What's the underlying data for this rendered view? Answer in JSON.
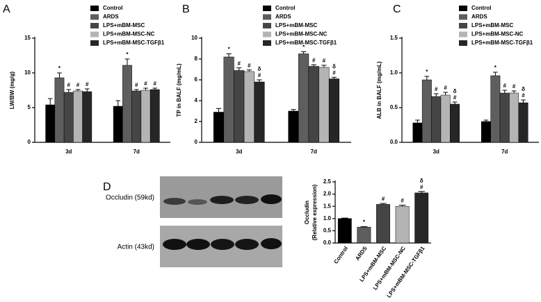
{
  "chart_data": [
    {
      "type": "grouped_bar",
      "panel_label": "A",
      "ylabel": "LW/BW (mg/g)",
      "categories": [
        "3d",
        "7d"
      ],
      "ylim": [
        0,
        15
      ],
      "yticks": [
        0,
        5,
        10,
        15
      ],
      "legend": "top-right",
      "series": [
        {
          "name": "Control",
          "color": "#000000",
          "values": [
            5.4,
            5.2
          ],
          "errors": [
            0.9,
            0.8
          ]
        },
        {
          "name": "ARDS",
          "color": "#5e5e5e",
          "values": [
            9.3,
            11.1
          ],
          "errors": [
            0.7,
            0.9
          ],
          "annotations": [
            [
              "*"
            ],
            [
              "*"
            ]
          ]
        },
        {
          "name": "LPS+mBM-MSC",
          "color": "#454545",
          "values": [
            7.2,
            7.4
          ],
          "errors": [
            0.4,
            0.2
          ],
          "annotations": [
            [
              "#"
            ],
            [
              "#"
            ]
          ]
        },
        {
          "name": "LPS+mBM-MSC-NC",
          "color": "#b4b4b4",
          "values": [
            7.4,
            7.5
          ],
          "errors": [
            0.2,
            0.3
          ],
          "annotations": [
            [
              "#"
            ],
            [
              "#"
            ]
          ]
        },
        {
          "name": "LPS+mBM-MSC-TGFβ1",
          "color": "#262626",
          "values": [
            7.3,
            7.6
          ],
          "errors": [
            0.4,
            0.2
          ],
          "annotations": [
            [
              "#"
            ],
            [
              "#"
            ]
          ]
        }
      ]
    },
    {
      "type": "grouped_bar",
      "panel_label": "B",
      "ylabel": "TP in BALF (mg/mL)",
      "categories": [
        "3d",
        "7d"
      ],
      "ylim": [
        0,
        10
      ],
      "yticks": [
        0,
        2,
        4,
        6,
        8,
        10
      ],
      "legend": "top-right",
      "series": [
        {
          "name": "Control",
          "color": "#000000",
          "values": [
            2.9,
            3.0
          ],
          "errors": [
            0.35,
            0.15
          ]
        },
        {
          "name": "ARDS",
          "color": "#5e5e5e",
          "values": [
            8.2,
            8.5
          ],
          "errors": [
            0.3,
            0.2
          ],
          "annotations": [
            [
              "*"
            ],
            [
              "*"
            ]
          ]
        },
        {
          "name": "LPS+mBM-MSC",
          "color": "#454545",
          "values": [
            6.9,
            7.3
          ],
          "errors": [
            0.25,
            0.15
          ],
          "annotations": [
            [
              "#"
            ],
            [
              "#"
            ]
          ]
        },
        {
          "name": "LPS+mBM-MSC-NC",
          "color": "#b4b4b4",
          "values": [
            6.8,
            7.2
          ],
          "errors": [
            0.15,
            0.2
          ],
          "annotations": [
            [
              "#"
            ],
            [
              "#"
            ]
          ]
        },
        {
          "name": "LPS+mBM-MSC-TGFβ1",
          "color": "#262626",
          "values": [
            5.8,
            6.1
          ],
          "errors": [
            0.2,
            0.15
          ],
          "annotations": [
            [
              "δ",
              "#"
            ],
            [
              "δ",
              "#"
            ]
          ]
        }
      ]
    },
    {
      "type": "grouped_bar",
      "panel_label": "C",
      "ylabel": "ALB in BALF (mg/mL)",
      "categories": [
        "3d",
        "7d"
      ],
      "ylim": [
        0,
        1.5
      ],
      "yticks": [
        {
          "value": 0,
          "label": "0.0"
        },
        0.5,
        {
          "value": 1,
          "label": "1.0"
        },
        1.5
      ],
      "legend": "top-right",
      "series": [
        {
          "name": "Control",
          "color": "#000000",
          "values": [
            0.28,
            0.3
          ],
          "errors": [
            0.04,
            0.02
          ]
        },
        {
          "name": "ARDS",
          "color": "#5e5e5e",
          "values": [
            0.9,
            0.96
          ],
          "errors": [
            0.05,
            0.05
          ],
          "annotations": [
            [
              "*"
            ],
            [
              "*"
            ]
          ]
        },
        {
          "name": "LPS+mBM-MSC",
          "color": "#454545",
          "values": [
            0.66,
            0.71
          ],
          "errors": [
            0.04,
            0.04
          ],
          "annotations": [
            [
              "#"
            ],
            [
              "#"
            ]
          ]
        },
        {
          "name": "LPS+mBM-MSC-NC",
          "color": "#b4b4b4",
          "values": [
            0.68,
            0.71
          ],
          "errors": [
            0.04,
            0.03
          ],
          "annotations": [
            [
              "#"
            ],
            [
              "#"
            ]
          ]
        },
        {
          "name": "LPS+mBM-MSC-TGFβ1",
          "color": "#262626",
          "values": [
            0.55,
            0.57
          ],
          "errors": [
            0.03,
            0.04
          ],
          "annotations": [
            [
              "δ",
              "#"
            ],
            [
              "δ",
              "#"
            ]
          ]
        }
      ]
    },
    {
      "type": "bar",
      "panel_label": "D",
      "ylabel": [
        "Occludin",
        "(Relative expression)"
      ],
      "blot_labels": [
        "Occludin (59kd)",
        "Actin (43kd)"
      ],
      "categories": [
        "Control",
        "ARDS",
        "LPS+mBM-MSC",
        "LPS+mBM-MSC-NC",
        "LPS+mBM-MSC-TGFβ1"
      ],
      "values": [
        1.0,
        0.65,
        1.58,
        1.5,
        2.05
      ],
      "errors": [
        0.02,
        0.02,
        0.04,
        0.05,
        0.06
      ],
      "colors": [
        "#000000",
        "#5e5e5e",
        "#454545",
        "#b4b4b4",
        "#262626"
      ],
      "annotations": [
        [],
        [
          "*"
        ],
        [
          "#"
        ],
        [
          "#"
        ],
        [
          "δ",
          "#"
        ]
      ],
      "ylim": [
        0,
        2.5
      ],
      "yticks": [
        {
          "value": 0,
          "label": "0.0"
        },
        0.5,
        {
          "value": 1,
          "label": "1.0"
        },
        1.5,
        {
          "value": 2,
          "label": "2.0"
        },
        2.5
      ]
    }
  ]
}
